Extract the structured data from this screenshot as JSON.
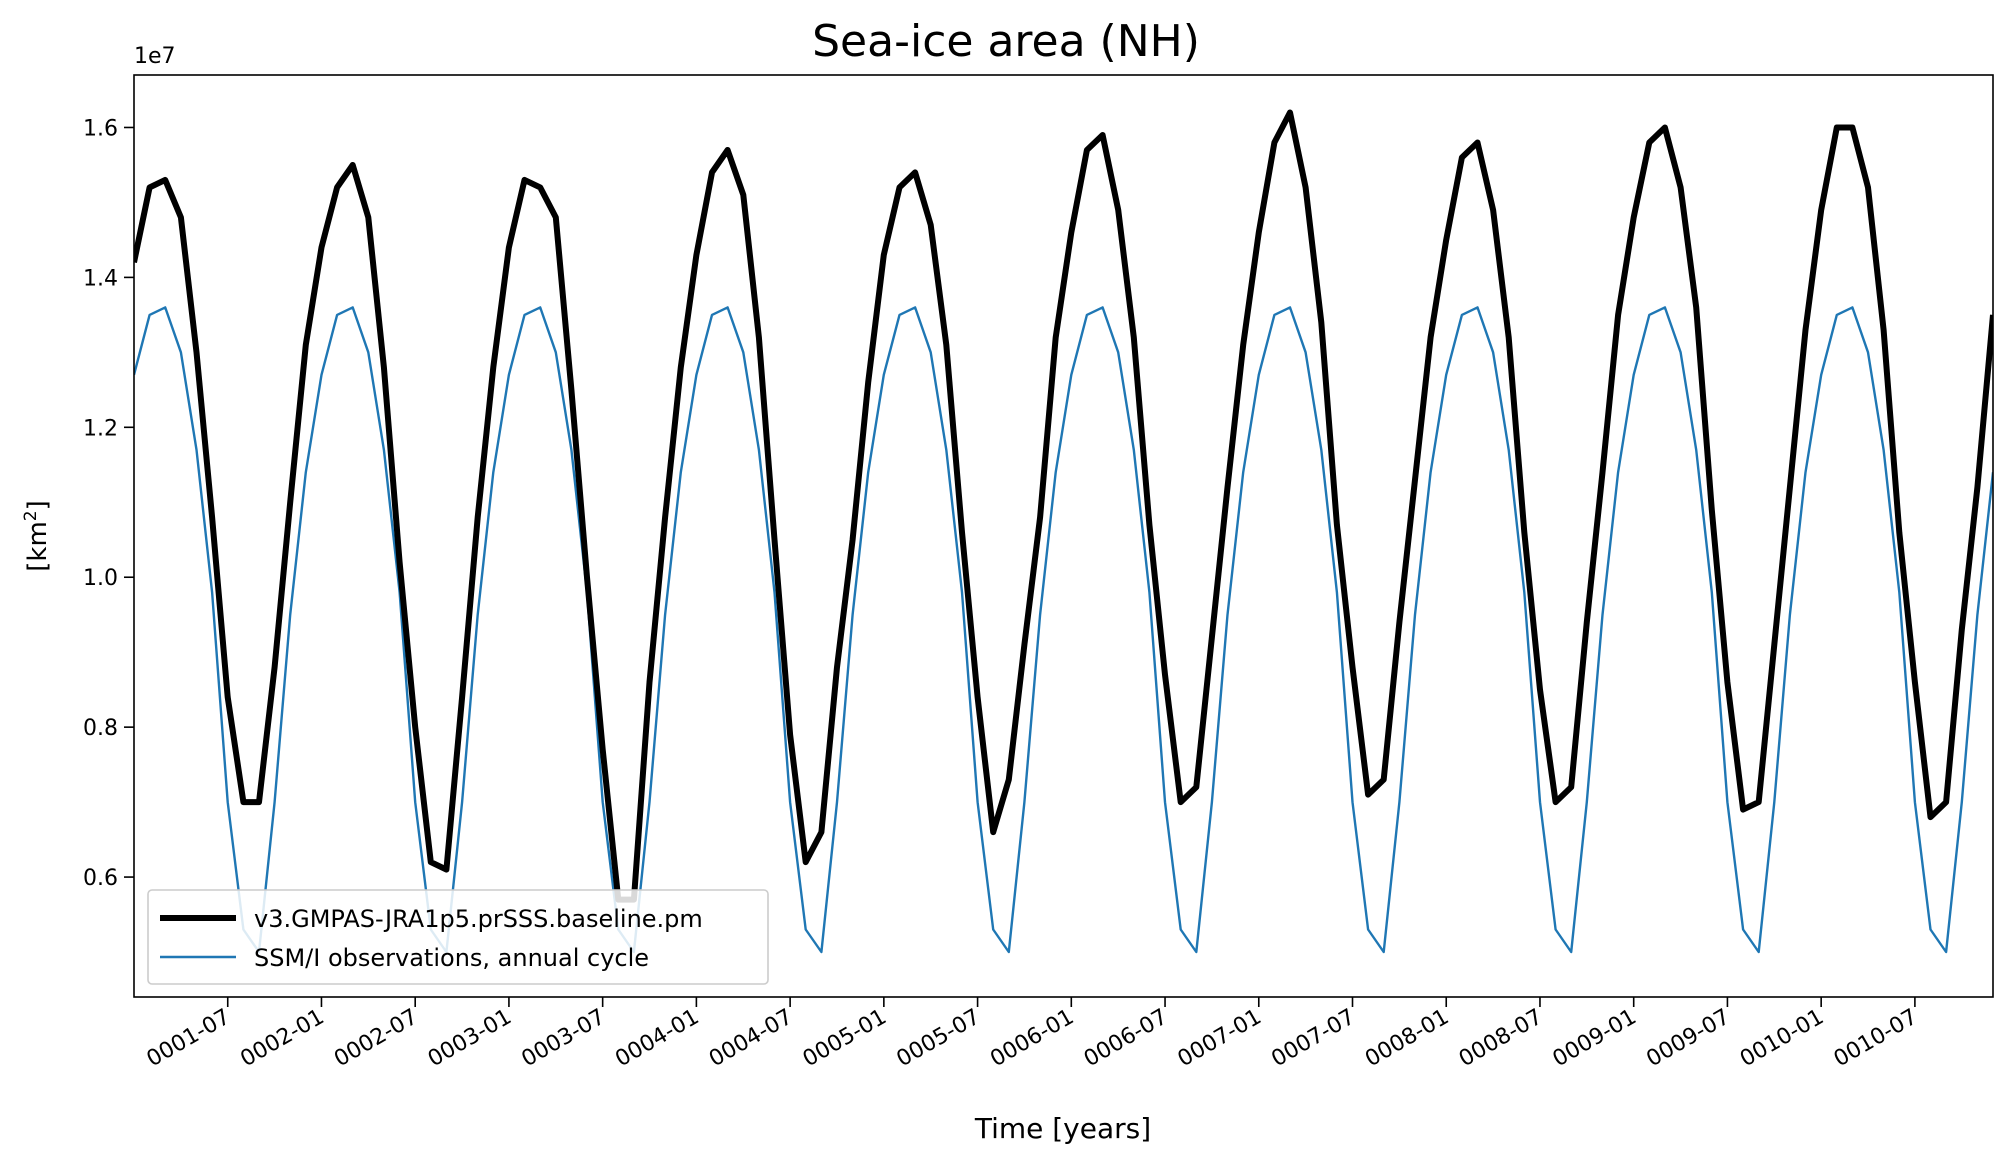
{
  "chart_data": {
    "type": "line",
    "title": "Sea-ice area (NH)",
    "xlabel": "Time [years]",
    "ylabel": "[km²]",
    "y_scale_label": "1e7",
    "y_multiplier": 10000000,
    "ylim": [
      0.44,
      1.67
    ],
    "yticks": [
      0.6,
      0.8,
      1.0,
      1.2,
      1.4,
      1.6
    ],
    "ytick_labels": [
      "0.6",
      "0.8",
      "1.0",
      "1.2",
      "1.4",
      "1.6"
    ],
    "x_start": "0001-01",
    "x_step": "1 month",
    "xticks": [
      "0001-07",
      "0002-01",
      "0002-07",
      "0003-01",
      "0003-07",
      "0004-01",
      "0004-07",
      "0005-01",
      "0005-07",
      "0006-01",
      "0006-07",
      "0007-01",
      "0007-07",
      "0008-01",
      "0008-07",
      "0009-01",
      "0009-07",
      "0010-01",
      "0010-07"
    ],
    "legend_location": "lower left",
    "grid": false,
    "series": [
      {
        "name": "v3.GMPAS-JRA1p5.prSSS.baseline.pm",
        "color": "#000000",
        "style": "thick",
        "values": [
          1.42,
          1.52,
          1.53,
          1.48,
          1.3,
          1.08,
          0.84,
          0.7,
          0.7,
          0.88,
          1.1,
          1.31,
          1.44,
          1.52,
          1.55,
          1.48,
          1.28,
          1.02,
          0.8,
          0.62,
          0.61,
          0.84,
          1.08,
          1.28,
          1.44,
          1.53,
          1.52,
          1.48,
          1.25,
          1.0,
          0.77,
          0.57,
          0.57,
          0.86,
          1.08,
          1.28,
          1.43,
          1.54,
          1.57,
          1.51,
          1.32,
          1.05,
          0.79,
          0.62,
          0.66,
          0.88,
          1.05,
          1.26,
          1.43,
          1.52,
          1.54,
          1.47,
          1.31,
          1.06,
          0.84,
          0.66,
          0.73,
          0.91,
          1.08,
          1.32,
          1.46,
          1.57,
          1.59,
          1.49,
          1.32,
          1.07,
          0.87,
          0.7,
          0.72,
          0.92,
          1.12,
          1.31,
          1.46,
          1.58,
          1.62,
          1.52,
          1.34,
          1.07,
          0.88,
          0.71,
          0.73,
          0.94,
          1.13,
          1.32,
          1.45,
          1.56,
          1.58,
          1.49,
          1.32,
          1.06,
          0.85,
          0.7,
          0.72,
          0.94,
          1.14,
          1.35,
          1.48,
          1.58,
          1.6,
          1.52,
          1.36,
          1.09,
          0.86,
          0.69,
          0.7,
          0.91,
          1.12,
          1.33,
          1.49,
          1.6,
          1.6,
          1.52,
          1.33,
          1.06,
          0.86,
          0.68,
          0.7,
          0.93,
          1.12,
          1.35
        ]
      },
      {
        "name": "SSM/I observations, annual cycle",
        "color": "#1f77b4",
        "style": "thin",
        "values": [
          1.27,
          1.35,
          1.36,
          1.3,
          1.17,
          0.98,
          0.7,
          0.53,
          0.5,
          0.7,
          0.95,
          1.14,
          1.27,
          1.35,
          1.36,
          1.3,
          1.17,
          0.98,
          0.7,
          0.53,
          0.5,
          0.7,
          0.95,
          1.14,
          1.27,
          1.35,
          1.36,
          1.3,
          1.17,
          0.98,
          0.7,
          0.53,
          0.5,
          0.7,
          0.95,
          1.14,
          1.27,
          1.35,
          1.36,
          1.3,
          1.17,
          0.98,
          0.7,
          0.53,
          0.5,
          0.7,
          0.95,
          1.14,
          1.27,
          1.35,
          1.36,
          1.3,
          1.17,
          0.98,
          0.7,
          0.53,
          0.5,
          0.7,
          0.95,
          1.14,
          1.27,
          1.35,
          1.36,
          1.3,
          1.17,
          0.98,
          0.7,
          0.53,
          0.5,
          0.7,
          0.95,
          1.14,
          1.27,
          1.35,
          1.36,
          1.3,
          1.17,
          0.98,
          0.7,
          0.53,
          0.5,
          0.7,
          0.95,
          1.14,
          1.27,
          1.35,
          1.36,
          1.3,
          1.17,
          0.98,
          0.7,
          0.53,
          0.5,
          0.7,
          0.95,
          1.14,
          1.27,
          1.35,
          1.36,
          1.3,
          1.17,
          0.98,
          0.7,
          0.53,
          0.5,
          0.7,
          0.95,
          1.14,
          1.27,
          1.35,
          1.36,
          1.3,
          1.17,
          0.98,
          0.7,
          0.53,
          0.5,
          0.7,
          0.95,
          1.14
        ]
      }
    ]
  }
}
